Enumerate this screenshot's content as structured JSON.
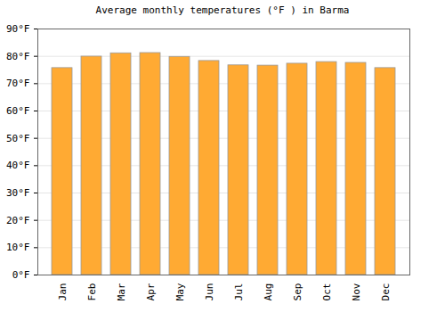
{
  "chart_data": {
    "type": "bar",
    "title": "Average monthly temperatures (°F ) in Barma",
    "categories": [
      "Jan",
      "Feb",
      "Mar",
      "Apr",
      "May",
      "Jun",
      "Jul",
      "Aug",
      "Sep",
      "Oct",
      "Nov",
      "Dec"
    ],
    "values": [
      75.7,
      79.9,
      81.1,
      81.2,
      79.8,
      78.3,
      76.7,
      76.6,
      77.3,
      77.9,
      77.6,
      75.7
    ],
    "color": "#ffaa33",
    "ylim": [
      0,
      90
    ],
    "yticks": [
      {
        "value": 0,
        "label": "0°F"
      },
      {
        "value": 10,
        "label": "10°F"
      },
      {
        "value": 20,
        "label": "20°F"
      },
      {
        "value": 30,
        "label": "30°F"
      },
      {
        "value": 40,
        "label": "40°F"
      },
      {
        "value": 50,
        "label": "50°F"
      },
      {
        "value": 60,
        "label": "60°F"
      },
      {
        "value": 70,
        "label": "70°F"
      },
      {
        "value": 80,
        "label": "80°F"
      },
      {
        "value": 90,
        "label": "90°F"
      }
    ],
    "grid": true
  }
}
